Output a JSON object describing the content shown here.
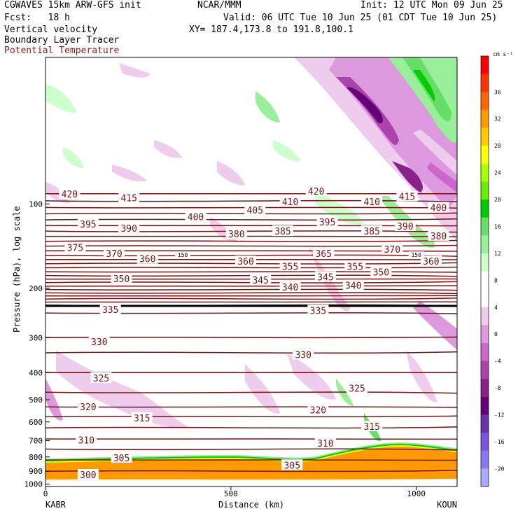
{
  "header": {
    "line1_left": "CGWAVES 15km ARW-GFS init",
    "line1_mid": "NCAR/MMM",
    "line1_right": "Init: 12 UTC Mon 09 Jun 25",
    "line2_left": "Fcst:   18 h",
    "line2_right": "Valid: 06 UTC Tue 10 Jun 25 (01 CDT Tue 10 Jun 25)",
    "line3_left": "Vertical velocity",
    "line3_right": "XY= 187.4,173.8 to 191.8,100.1",
    "line4_left": "Boundary Layer Tracer",
    "line5_left": "Potential Temperature"
  },
  "colorbar": {
    "unit_label": "cm s⁻¹",
    "levels": [
      "36",
      "32",
      "28",
      "24",
      "20",
      "16",
      "12",
      "8",
      "4",
      "0",
      "-4",
      "-8",
      "-12",
      "-16",
      "-20"
    ],
    "colors": [
      "#ff0000",
      "#ff3300",
      "#ff6600",
      "#ff9900",
      "#ffcc00",
      "#ffff00",
      "#aaff00",
      "#66ee00",
      "#00cc00",
      "#66dd66",
      "#99ee99",
      "#ccffcc",
      "#ffffff",
      "#ffffff",
      "#eeccee",
      "#dd99dd",
      "#cc66cc",
      "#aa44aa",
      "#882288",
      "#660077",
      "#6633aa",
      "#7755dd",
      "#8877ee",
      "#aaaaff"
    ]
  },
  "chart_data": {
    "type": "heatmap",
    "xlabel": "Distance (km)",
    "ylabel": "Pressure (hPa), log scale",
    "x_ticks": [
      "0",
      "500",
      "1000"
    ],
    "x_tick_values": [
      0,
      500,
      1000
    ],
    "xlim": [
      0,
      1110
    ],
    "y_ticks": [
      "100",
      "200",
      "300",
      "400",
      "500",
      "600",
      "700",
      "800",
      "900",
      "1000"
    ],
    "y_tick_values": [
      100,
      200,
      300,
      400,
      500,
      600,
      700,
      800,
      900,
      1000
    ],
    "ylim": [
      1020,
      30
    ],
    "y_scale": "log",
    "x_endpoints": [
      "KABR",
      "KOUN"
    ],
    "theta_labels": [
      {
        "v": "420",
        "x": 65,
        "p": 92
      },
      {
        "v": "415",
        "x": 225,
        "p": 95
      },
      {
        "v": "405",
        "x": 565,
        "p": 105
      },
      {
        "v": "410",
        "x": 660,
        "p": 98
      },
      {
        "v": "420",
        "x": 730,
        "p": 90
      },
      {
        "v": "410",
        "x": 880,
        "p": 98
      },
      {
        "v": "415",
        "x": 975,
        "p": 94
      },
      {
        "v": "400",
        "x": 1060,
        "p": 103
      },
      {
        "v": "395",
        "x": 115,
        "p": 118
      },
      {
        "v": "390",
        "x": 225,
        "p": 122
      },
      {
        "v": "400",
        "x": 405,
        "p": 111
      },
      {
        "v": "380",
        "x": 515,
        "p": 128
      },
      {
        "v": "385",
        "x": 640,
        "p": 125
      },
      {
        "v": "395",
        "x": 760,
        "p": 116
      },
      {
        "v": "385",
        "x": 880,
        "p": 125
      },
      {
        "v": "390",
        "x": 970,
        "p": 120
      },
      {
        "v": "380",
        "x": 1060,
        "p": 130
      },
      {
        "v": "375",
        "x": 80,
        "p": 143
      },
      {
        "v": "370",
        "x": 185,
        "p": 150
      },
      {
        "v": "360",
        "x": 275,
        "p": 157
      },
      {
        "v": "365",
        "x": 750,
        "p": 150
      },
      {
        "v": "370",
        "x": 935,
        "p": 145
      },
      {
        "v": "360",
        "x": 1040,
        "p": 160
      },
      {
        "v": "360",
        "x": 540,
        "p": 160
      },
      {
        "v": "355",
        "x": 660,
        "p": 167
      },
      {
        "v": "355",
        "x": 835,
        "p": 167
      },
      {
        "v": "350",
        "x": 905,
        "p": 175
      },
      {
        "v": "350",
        "x": 205,
        "p": 185
      },
      {
        "v": "345",
        "x": 580,
        "p": 187
      },
      {
        "v": "345",
        "x": 755,
        "p": 182
      },
      {
        "v": "340",
        "x": 660,
        "p": 198
      },
      {
        "v": "340",
        "x": 830,
        "p": 195
      },
      {
        "v": "335",
        "x": 175,
        "p": 238
      },
      {
        "v": "335",
        "x": 735,
        "p": 240
      },
      {
        "v": "330",
        "x": 145,
        "p": 310
      },
      {
        "v": "330",
        "x": 695,
        "p": 345
      },
      {
        "v": "325",
        "x": 150,
        "p": 418
      },
      {
        "v": "325",
        "x": 840,
        "p": 455
      },
      {
        "v": "320",
        "x": 115,
        "p": 530
      },
      {
        "v": "320",
        "x": 735,
        "p": 543
      },
      {
        "v": "315",
        "x": 260,
        "p": 580
      },
      {
        "v": "315",
        "x": 880,
        "p": 622
      },
      {
        "v": "310",
        "x": 110,
        "p": 695
      },
      {
        "v": "310",
        "x": 755,
        "p": 715
      },
      {
        "v": "305",
        "x": 205,
        "p": 805
      },
      {
        "v": "305",
        "x": 665,
        "p": 855
      },
      {
        "v": "300",
        "x": 115,
        "p": 925
      }
    ],
    "tracer_labels": [
      {
        "v": "150",
        "x": 370,
        "p": 152
      },
      {
        "v": "150",
        "x": 1000,
        "p": 152
      }
    ]
  }
}
